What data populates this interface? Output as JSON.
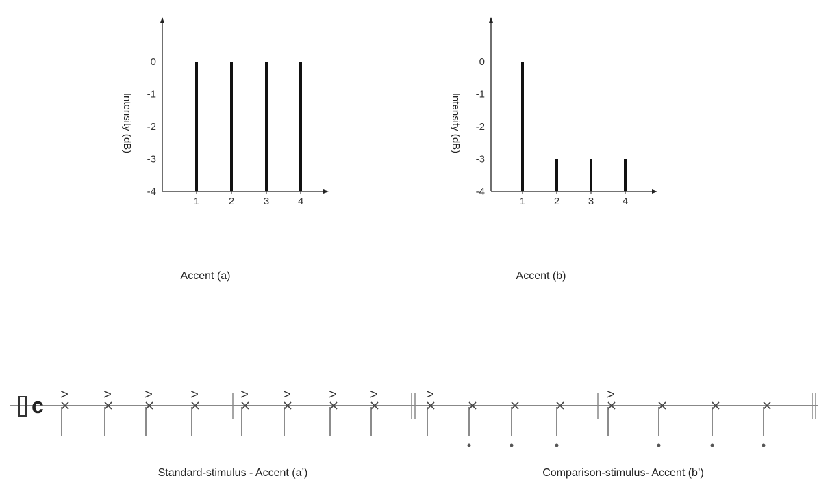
{
  "chart_data": [
    {
      "type": "bar",
      "ylabel": "Intensity (dB)",
      "categories": [
        "1",
        "2",
        "3",
        "4"
      ],
      "values": [
        0,
        0,
        0,
        0
      ],
      "yticks": [
        "0",
        "-1",
        "-2",
        "-3",
        "-4"
      ],
      "ylim": [
        -4,
        0
      ],
      "caption": "Accent (a)"
    },
    {
      "type": "bar",
      "ylabel": "Intensity (dB)",
      "categories": [
        "1",
        "2",
        "3",
        "4"
      ],
      "values": [
        0,
        -3,
        -3,
        -3
      ],
      "yticks": [
        "0",
        "-1",
        "-2",
        "-3",
        "-4"
      ],
      "ylim": [
        -4,
        0
      ],
      "caption": "Accent (b)"
    }
  ],
  "notation": {
    "standard": {
      "caption": "Standard-stimulus - Accent (a’)",
      "accents": [
        true,
        true,
        true,
        true,
        true,
        true,
        true,
        true
      ],
      "dots": [
        false,
        false,
        false,
        false,
        false,
        false,
        false,
        false
      ]
    },
    "comparison": {
      "caption": "Comparison-stimulus- Accent (b’)",
      "accents": [
        true,
        false,
        false,
        false,
        true,
        false,
        false,
        false
      ],
      "dots": [
        false,
        true,
        true,
        true,
        false,
        true,
        true,
        true
      ]
    },
    "time_signature": "c",
    "accent_mark": ">"
  }
}
